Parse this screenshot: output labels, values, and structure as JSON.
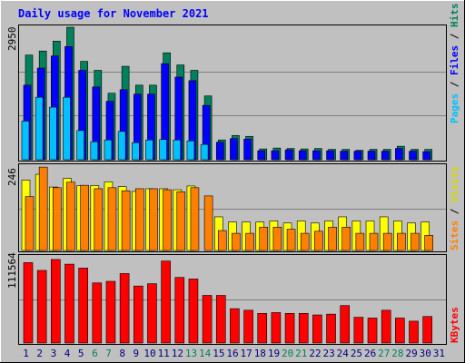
{
  "chart_data": [
    {
      "type": "bar",
      "panel": "hits-files-pages",
      "title": "Daily usage for November 2021",
      "ymax_label": "2950",
      "ylim": [
        0,
        2950
      ],
      "grid": true,
      "legend": [
        "Pages",
        "Files",
        "Hits"
      ],
      "categories": [
        "1",
        "2",
        "3",
        "4",
        "5",
        "6",
        "7",
        "8",
        "9",
        "10",
        "11",
        "12",
        "13",
        "14",
        "15",
        "16",
        "17",
        "18",
        "19",
        "20",
        "21",
        "22",
        "23",
        "24",
        "25",
        "26",
        "27",
        "28",
        "29",
        "30",
        "31"
      ],
      "series": [
        {
          "name": "Hits",
          "values": [
            2330,
            2420,
            2640,
            2950,
            2190,
            1990,
            1480,
            2080,
            1660,
            1660,
            2380,
            2110,
            1990,
            1420,
            440,
            540,
            520,
            240,
            260,
            250,
            240,
            250,
            230,
            230,
            210,
            230,
            230,
            300,
            230,
            230,
            0
          ]
        },
        {
          "name": "Files",
          "values": [
            1660,
            2040,
            2310,
            2520,
            1990,
            1620,
            1300,
            1560,
            1460,
            1460,
            2140,
            1840,
            1760,
            1210,
            390,
            470,
            460,
            200,
            200,
            220,
            200,
            200,
            200,
            190,
            190,
            190,
            190,
            250,
            190,
            180,
            0
          ]
        },
        {
          "name": "Pages",
          "values": [
            860,
            1390,
            1170,
            1390,
            650,
            400,
            440,
            630,
            380,
            440,
            450,
            440,
            420,
            340,
            0,
            0,
            0,
            0,
            0,
            0,
            0,
            0,
            0,
            0,
            0,
            0,
            0,
            0,
            0,
            0,
            0
          ]
        }
      ],
      "colors": {
        "Hits": "#00805c",
        "Files": "#0000ff",
        "Pages": "#00c0ff"
      }
    },
    {
      "type": "bar",
      "panel": "visits-sites",
      "ymax_label": "246",
      "ylim": [
        0,
        246
      ],
      "grid": true,
      "legend": [
        "Sites",
        "Visits"
      ],
      "categories": [
        "1",
        "2",
        "3",
        "4",
        "5",
        "6",
        "7",
        "8",
        "9",
        "10",
        "11",
        "12",
        "13",
        "14",
        "15",
        "16",
        "17",
        "18",
        "19",
        "20",
        "21",
        "22",
        "23",
        "24",
        "25",
        "26",
        "27",
        "28",
        "29",
        "30",
        "31"
      ],
      "series": [
        {
          "name": "Visits",
          "values": [
            205,
            222,
            185,
            210,
            189,
            189,
            200,
            186,
            172,
            180,
            180,
            177,
            188,
            0,
            98,
            83,
            83,
            83,
            86,
            80,
            86,
            80,
            86,
            98,
            86,
            86,
            98,
            86,
            80,
            83,
            0
          ]
        },
        {
          "name": "Sites",
          "values": [
            157,
            243,
            183,
            199,
            190,
            180,
            183,
            174,
            180,
            180,
            177,
            171,
            183,
            159,
            58,
            50,
            50,
            68,
            68,
            62,
            50,
            56,
            68,
            68,
            50,
            50,
            50,
            50,
            50,
            44,
            0
          ]
        }
      ],
      "colors": {
        "Visits": "#ffff00",
        "Sites": "#ff8000"
      }
    },
    {
      "type": "bar",
      "panel": "kbytes",
      "ymax_label": "111564",
      "ylim": [
        0,
        111564
      ],
      "grid": true,
      "legend": [
        "KBytes"
      ],
      "categories": [
        "1",
        "2",
        "3",
        "4",
        "5",
        "6",
        "7",
        "8",
        "9",
        "10",
        "11",
        "12",
        "13",
        "14",
        "15",
        "16",
        "17",
        "18",
        "19",
        "20",
        "21",
        "22",
        "23",
        "24",
        "25",
        "26",
        "27",
        "28",
        "29",
        "30",
        "31"
      ],
      "series": [
        {
          "name": "KBytes",
          "values": [
            103000,
            93000,
            107000,
            101000,
            96000,
            77000,
            79000,
            89000,
            73000,
            76000,
            105000,
            84000,
            82000,
            61000,
            61000,
            44000,
            42000,
            38000,
            39000,
            38000,
            38000,
            36000,
            37000,
            48000,
            33000,
            32000,
            42000,
            32000,
            28000,
            34000,
            0
          ]
        }
      ],
      "colors": {
        "KBytes": "#ff0000"
      }
    }
  ],
  "weekend_days": [
    "6",
    "7",
    "13",
    "14",
    "20",
    "21",
    "27",
    "28"
  ],
  "colors": {
    "frame": "#c0c0c0",
    "plot_bg": "#c0c0c0",
    "title": "#0000ff",
    "weekday_label": "#000080",
    "weekend_label": "#00805c",
    "grid": "#808080"
  }
}
